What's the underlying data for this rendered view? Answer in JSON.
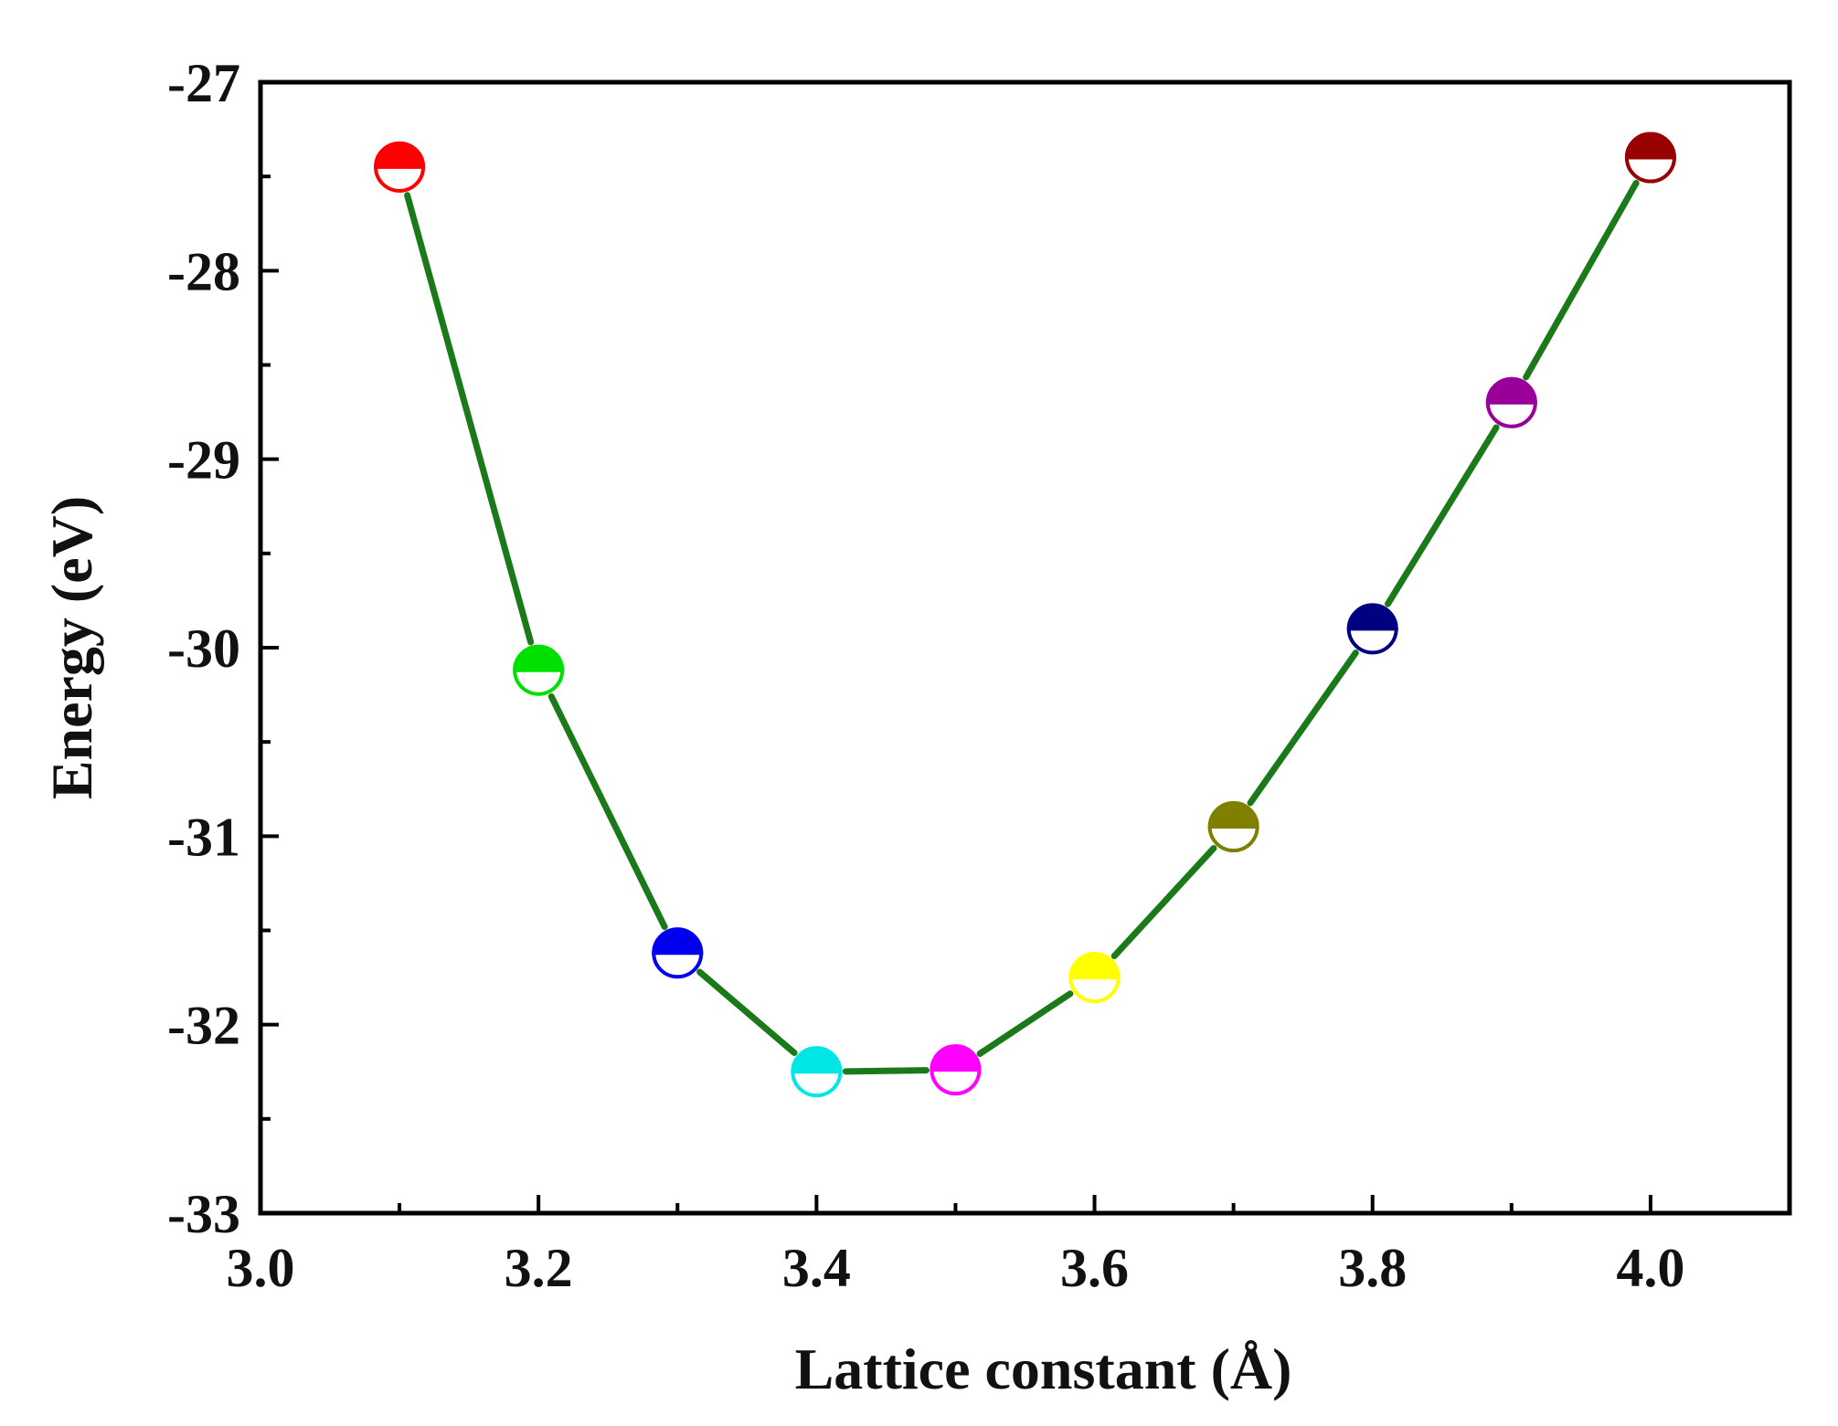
{
  "chart_data": {
    "type": "line",
    "title": "",
    "xlabel": "Lattice constant (Å)",
    "ylabel": "Energy (eV)",
    "xlim": [
      3.0,
      4.1
    ],
    "ylim": [
      -33,
      -27
    ],
    "xticks": [
      3.0,
      3.2,
      3.4,
      3.6,
      3.8,
      4.0
    ],
    "xtick_labels": [
      "3.0",
      "3.2",
      "3.4",
      "3.6",
      "3.8",
      "4.0"
    ],
    "yticks": [
      -27,
      -28,
      -29,
      -30,
      -31,
      -32,
      -33
    ],
    "ytick_labels": [
      "-27",
      "-28",
      "-29",
      "-30",
      "-31",
      "-32",
      "-33"
    ],
    "grid": false,
    "line_color": "#1a7a1a",
    "series": [
      {
        "name": "Energy",
        "x": [
          3.1,
          3.2,
          3.3,
          3.4,
          3.5,
          3.6,
          3.7,
          3.8,
          3.9,
          4.0
        ],
        "y": [
          -27.45,
          -30.12,
          -31.62,
          -32.25,
          -32.24,
          -31.75,
          -30.95,
          -29.9,
          -28.7,
          -27.4
        ],
        "marker_colors": [
          "#ff0000",
          "#00e000",
          "#0000ee",
          "#00e6e6",
          "#ff00ff",
          "#ffff00",
          "#808000",
          "#000080",
          "#990099",
          "#990000"
        ]
      }
    ]
  }
}
